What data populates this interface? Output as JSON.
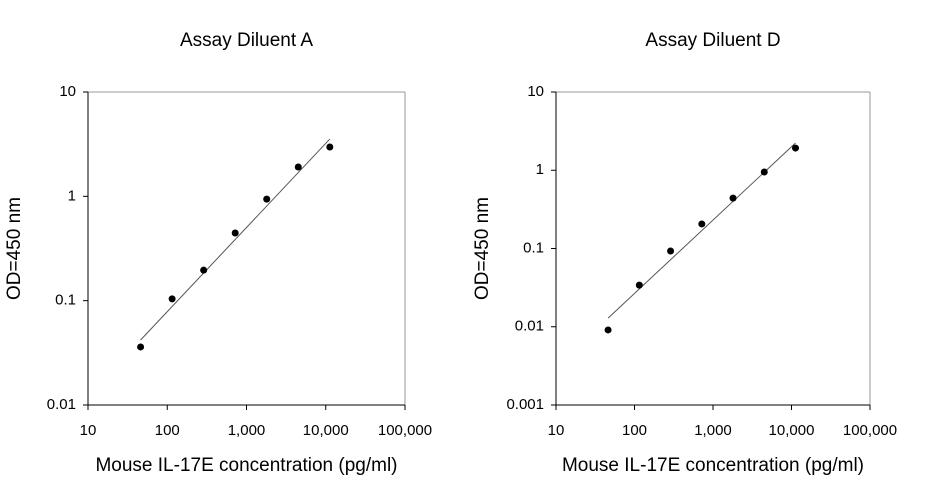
{
  "chart_data": [
    {
      "type": "scatter",
      "title": "Assay Diluent A",
      "x_label": "Mouse IL-17E concentration (pg/ml)",
      "y_label": "OD=450 nm",
      "xscale": "log",
      "yscale": "log",
      "x": [
        46.08,
        115.2,
        288,
        720,
        1800,
        4500,
        11250
      ],
      "values": [
        0.036,
        0.104,
        0.196,
        0.445,
        0.94,
        1.91,
        2.97
      ],
      "color": "#000000",
      "trendline": {
        "x": [
          46.08,
          11250
        ],
        "y": [
          0.042,
          3.54
        ],
        "color": "#555555"
      },
      "xlim": [
        10,
        100000
      ],
      "ylim": [
        0.01,
        10
      ],
      "xticks": [
        10,
        100,
        {
          "value": 1000,
          "label": "1,000"
        },
        {
          "value": 10000,
          "label": "10,000"
        },
        {
          "value": 100000,
          "label": "100,000"
        }
      ],
      "yticks": [
        0.01,
        0.1,
        1,
        10
      ]
    },
    {
      "type": "scatter",
      "title": "Assay Diluent D",
      "x_label": "Mouse IL-17E concentration (pg/ml)",
      "y_label": "OD=450 nm",
      "xscale": "log",
      "yscale": "log",
      "x": [
        46.08,
        115.2,
        288,
        720,
        1800,
        4500,
        11250
      ],
      "values": [
        0.0091,
        0.034,
        0.093,
        0.206,
        0.44,
        0.95,
        1.92
      ],
      "color": "#000000",
      "trendline": {
        "x": [
          46.08,
          11250
        ],
        "y": [
          0.0129,
          2.23
        ],
        "color": "#555555"
      },
      "xlim": [
        10,
        100000
      ],
      "ylim": [
        0.001,
        10
      ],
      "xticks": [
        10,
        100,
        {
          "value": 1000,
          "label": "1,000"
        },
        {
          "value": 10000,
          "label": "10,000"
        },
        {
          "value": 100000,
          "label": "100,000"
        }
      ],
      "yticks": [
        0.001,
        0.01,
        0.1,
        1,
        10
      ]
    }
  ]
}
